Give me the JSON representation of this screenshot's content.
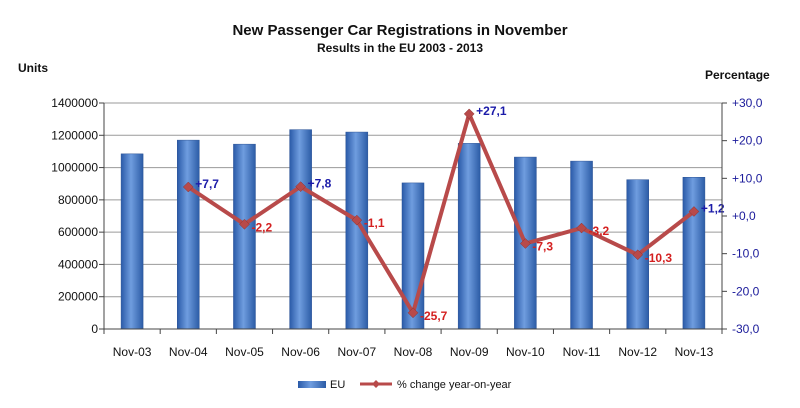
{
  "chart_data": {
    "type": "bar",
    "title": "New Passenger Car Registrations in November",
    "subtitle": "Results in the EU 2003 - 2013",
    "ylabel_left": "Units",
    "ylabel_right": "Percentage",
    "categories": [
      "Nov-03",
      "Nov-04",
      "Nov-05",
      "Nov-06",
      "Nov-07",
      "Nov-08",
      "Nov-09",
      "Nov-10",
      "Nov-11",
      "Nov-12",
      "Nov-13"
    ],
    "series": [
      {
        "name": "EU",
        "type": "bar",
        "axis": "left",
        "color": "#3d6fc0",
        "values": [
          1085000,
          1170000,
          1145000,
          1235000,
          1220000,
          905000,
          1150000,
          1065000,
          1040000,
          925000,
          940000
        ]
      },
      {
        "name": "% change year-on-year",
        "type": "line",
        "axis": "right",
        "color": "#b84a4a",
        "values": [
          null,
          7.7,
          -2.2,
          7.8,
          -1.1,
          -25.7,
          27.1,
          -7.3,
          -3.2,
          -10.3,
          1.2
        ],
        "labels": [
          "",
          "+7,7",
          "-2,2",
          "+7,8",
          "-1,1",
          "-25,7",
          "+27,1",
          "-7,3",
          "-3,2",
          "-10,3",
          "+1,2"
        ],
        "positive_label_color": "#1a1aa8",
        "negative_label_color": "#d42020"
      }
    ],
    "ylim_left": [
      0,
      1400000
    ],
    "yticks_left": [
      "0",
      "200000",
      "400000",
      "600000",
      "800000",
      "1000000",
      "1200000",
      "1400000"
    ],
    "ylim_right": [
      -30,
      30
    ],
    "yticks_right": [
      "-30,0",
      "-20,0",
      "-10,0",
      "+0,0",
      "+10,0",
      "+20,0",
      "+30,0"
    ],
    "grid": true,
    "legend_position": "bottom"
  }
}
